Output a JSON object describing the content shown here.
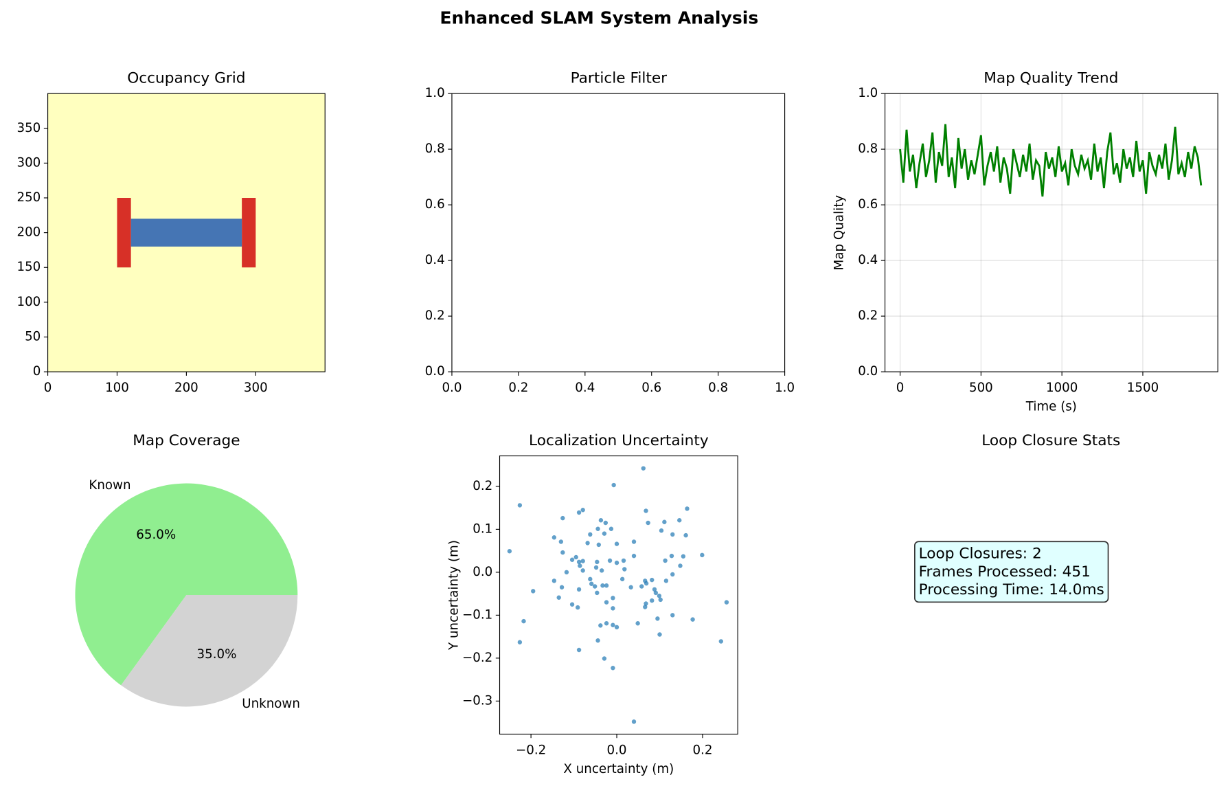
{
  "title": "Enhanced SLAM System Analysis",
  "chart_data": [
    {
      "type": "heatmap",
      "title": "Occupancy Grid",
      "background": "#ffffbf",
      "regions": [
        {
          "x": [
            100,
            120
          ],
          "y": [
            150,
            250
          ],
          "color": "#d73027"
        },
        {
          "x": [
            280,
            300
          ],
          "y": [
            150,
            250
          ],
          "color": "#d73027"
        },
        {
          "x": [
            120,
            280
          ],
          "y": [
            180,
            220
          ],
          "color": "#4575b4"
        }
      ],
      "xlim": [
        0,
        400
      ],
      "ylim": [
        0,
        400
      ],
      "xticks": [
        0,
        100,
        200,
        300
      ],
      "yticks": [
        0,
        50,
        100,
        150,
        200,
        250,
        300,
        350
      ],
      "grid": false
    },
    {
      "type": "line",
      "title": "Particle Filter",
      "series": [],
      "xlim": [
        0,
        1
      ],
      "ylim": [
        0,
        1
      ],
      "xticks": [
        {
          "value": 0,
          "label": "0.0"
        },
        0.2,
        0.4,
        0.6,
        0.8,
        {
          "value": 1,
          "label": "1.0"
        }
      ],
      "yticks": [
        {
          "value": 0,
          "label": "0.0"
        },
        0.2,
        0.4,
        0.6,
        0.8,
        {
          "value": 1,
          "label": "1.0"
        }
      ],
      "grid": false
    },
    {
      "type": "line",
      "title": "Map Quality Trend",
      "xlabel": "Time (s)",
      "ylabel": "Map Quality",
      "x": [
        0,
        20,
        40,
        60,
        80,
        100,
        120,
        140,
        160,
        180,
        200,
        220,
        240,
        260,
        280,
        300,
        320,
        340,
        360,
        380,
        400,
        420,
        440,
        460,
        480,
        500,
        520,
        540,
        560,
        580,
        600,
        620,
        640,
        660,
        680,
        700,
        720,
        740,
        760,
        780,
        800,
        820,
        840,
        860,
        880,
        900,
        920,
        940,
        960,
        980,
        1000,
        1020,
        1040,
        1060,
        1080,
        1100,
        1120,
        1140,
        1160,
        1180,
        1200,
        1220,
        1240,
        1260,
        1280,
        1300,
        1320,
        1340,
        1360,
        1380,
        1400,
        1420,
        1440,
        1460,
        1480,
        1500,
        1520,
        1540,
        1560,
        1580,
        1600,
        1620,
        1640,
        1660,
        1680,
        1700,
        1720,
        1740,
        1760,
        1780,
        1800,
        1820,
        1840,
        1860
      ],
      "series": [
        {
          "name": "Map Quality",
          "color": "green",
          "values": [
            0.8,
            0.68,
            0.87,
            0.72,
            0.78,
            0.66,
            0.75,
            0.82,
            0.7,
            0.76,
            0.86,
            0.68,
            0.79,
            0.74,
            0.89,
            0.7,
            0.77,
            0.66,
            0.84,
            0.73,
            0.8,
            0.69,
            0.76,
            0.71,
            0.78,
            0.85,
            0.67,
            0.74,
            0.79,
            0.72,
            0.81,
            0.68,
            0.77,
            0.73,
            0.64,
            0.8,
            0.75,
            0.7,
            0.78,
            0.72,
            0.82,
            0.69,
            0.76,
            0.74,
            0.63,
            0.79,
            0.73,
            0.77,
            0.7,
            0.81,
            0.72,
            0.75,
            0.67,
            0.8,
            0.74,
            0.71,
            0.78,
            0.73,
            0.76,
            0.69,
            0.82,
            0.72,
            0.77,
            0.66,
            0.79,
            0.86,
            0.71,
            0.75,
            0.68,
            0.8,
            0.73,
            0.77,
            0.7,
            0.83,
            0.72,
            0.76,
            0.64,
            0.79,
            0.74,
            0.71,
            0.78,
            0.73,
            0.82,
            0.69,
            0.76,
            0.88,
            0.71,
            0.75,
            0.7,
            0.79,
            0.73,
            0.81,
            0.77,
            0.67
          ]
        }
      ],
      "xlim": [
        -93.5,
        1963.5
      ],
      "ylim": [
        0,
        1
      ],
      "xticks": [
        0,
        500,
        1000,
        1500
      ],
      "yticks": [
        {
          "value": 0,
          "label": "0.0"
        },
        0.2,
        0.4,
        0.6,
        0.8,
        {
          "value": 1,
          "label": "1.0"
        }
      ],
      "grid": true
    },
    {
      "type": "pie",
      "title": "Map Coverage",
      "categories": [
        "Known",
        "Unknown"
      ],
      "values": [
        65,
        35
      ],
      "value_labels": [
        "65.0%",
        "35.0%"
      ],
      "colors": [
        "#90ee90",
        "#d3d3d3"
      ]
    },
    {
      "type": "scatter",
      "title": "Localization Uncertainty",
      "xlabel": "X uncertainty (m)",
      "ylabel": "Y uncertainty (m)",
      "color": "#1f77b4",
      "x": [
        0.062,
        -0.007,
        -0.226,
        0.164,
        0.068,
        -0.079,
        -0.088,
        -0.126,
        0.146,
        -0.037,
        -0.026,
        0.111,
        0.073,
        -0.013,
        -0.044,
        -0.029,
        0.104,
        0.13,
        0.161,
        -0.146,
        -0.062,
        -0.13,
        0.04,
        -0.068,
        0,
        -0.042,
        -0.25,
        -0.126,
        0.04,
        0.199,
        0.155,
        0.128,
        -0.095,
        -0.104,
        -0.088,
        0.016,
        -0.016,
        -0.079,
        -0.046,
        0,
        0.113,
        0.148,
        -0.086,
        -0.048,
        0.018,
        -0.079,
        -0.035,
        -0.117,
        0.13,
        -0.062,
        0.013,
        -0.146,
        0.066,
        0.115,
        0.082,
        -0.059,
        0.069,
        -0.033,
        -0.024,
        -0.128,
        0.033,
        0.058,
        -0.051,
        -0.088,
        -0.195,
        0.088,
        0.091,
        -0.046,
        0.099,
        -0.135,
        -0.009,
        0.102,
        0.082,
        -0.024,
        0.256,
        0.068,
        -0.104,
        0.066,
        -0.091,
        -0.009,
        0.13,
        -0.217,
        0.177,
        0.095,
        0.049,
        -0.024,
        -0.038,
        -0.009,
        0,
        0.1,
        -0.044,
        -0.226,
        0.243,
        -0.088,
        -0.029,
        -0.009,
        0.04
      ],
      "values": [
        0.242,
        0.203,
        0.156,
        0.148,
        0.143,
        0.145,
        0.139,
        0.126,
        0.121,
        0.121,
        0.115,
        0.117,
        0.115,
        0.101,
        0.101,
        0.09,
        0.097,
        0.088,
        0.086,
        0.081,
        0.088,
        0.071,
        0.071,
        0.068,
        0.066,
        0.064,
        0.049,
        0.046,
        0.038,
        0.04,
        0.037,
        0.038,
        0.035,
        0.029,
        0.024,
        0.027,
        0.027,
        0.026,
        0.024,
        0.022,
        0.027,
        0.015,
        0.015,
        0.011,
        0.007,
        0.004,
        0.004,
        0,
        -0.005,
        -0.016,
        -0.016,
        -0.02,
        -0.02,
        -0.02,
        -0.018,
        -0.027,
        -0.026,
        -0.031,
        -0.031,
        -0.035,
        -0.035,
        -0.033,
        -0.033,
        -0.04,
        -0.044,
        -0.04,
        -0.048,
        -0.048,
        -0.055,
        -0.059,
        -0.06,
        -0.064,
        -0.066,
        -0.07,
        -0.07,
        -0.073,
        -0.075,
        -0.081,
        -0.082,
        -0.084,
        -0.1,
        -0.114,
        -0.11,
        -0.108,
        -0.119,
        -0.119,
        -0.124,
        -0.123,
        -0.128,
        -0.145,
        -0.159,
        -0.163,
        -0.161,
        -0.181,
        -0.201,
        -0.223,
        -0.348
      ],
      "xlim": [
        -0.273,
        0.282
      ],
      "ylim": [
        -0.377,
        0.271
      ],
      "xticks": [
        {
          "value": -0.2,
          "label": "−0.2"
        },
        {
          "value": 0,
          "label": "0.0"
        },
        0.2
      ],
      "yticks": [
        {
          "value": -0.3,
          "label": "−0.3"
        },
        {
          "value": -0.2,
          "label": "−0.2"
        },
        {
          "value": -0.1,
          "label": "−0.1"
        },
        {
          "value": 0,
          "label": "0.0"
        },
        0.1,
        0.2
      ],
      "grid": false
    },
    {
      "type": "text",
      "title": "Loop Closure Stats",
      "box_color": "#e0ffff",
      "lines": [
        "Loop Closures: 2",
        "Frames Processed: 451",
        "Processing Time: 14.0ms"
      ]
    }
  ]
}
